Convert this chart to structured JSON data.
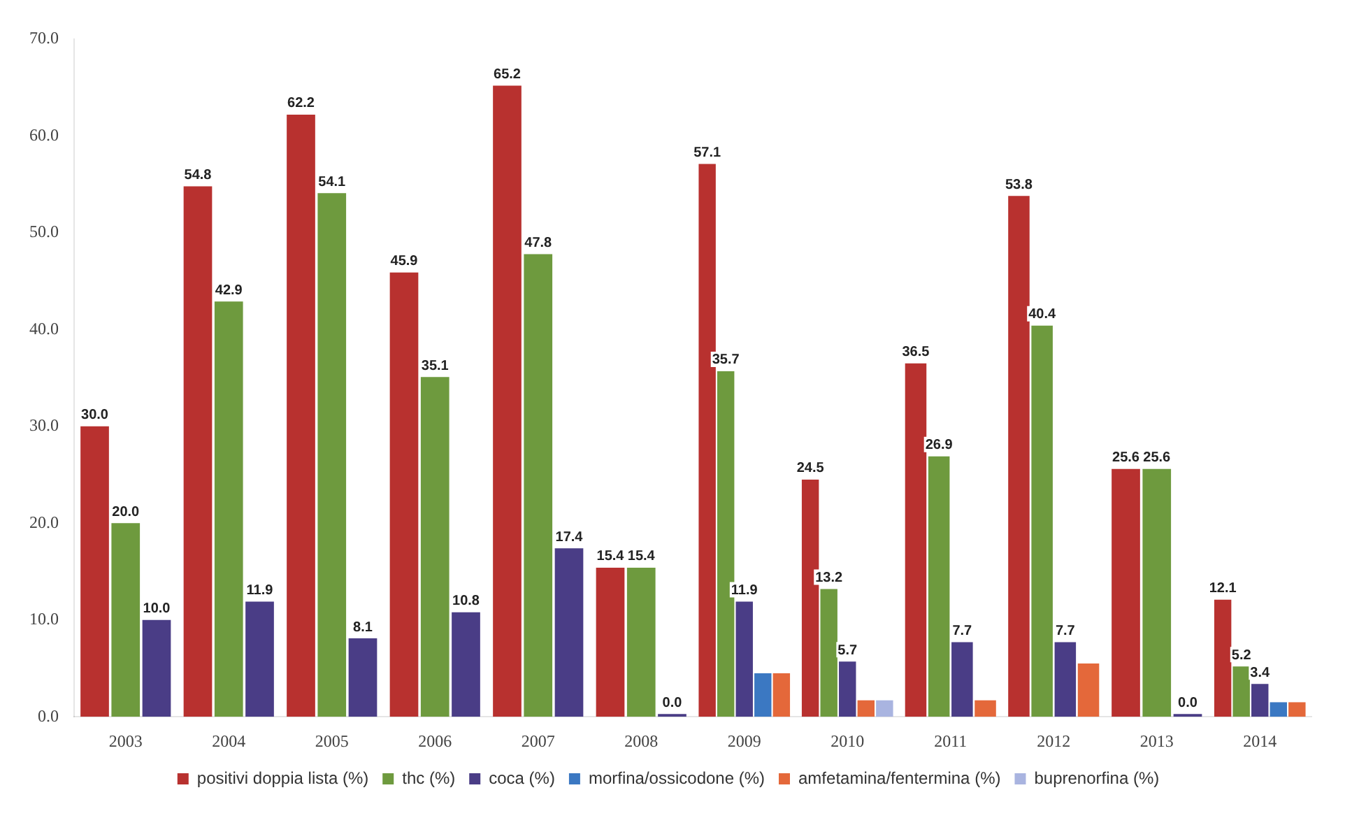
{
  "chart_data": {
    "type": "bar",
    "categories": [
      "2003",
      "2004",
      "2005",
      "2006",
      "2007",
      "2008",
      "2009",
      "2010",
      "2011",
      "2012",
      "2013",
      "2014"
    ],
    "series": [
      {
        "name": "positivi doppia lista (%)",
        "color": "#b8312f",
        "values": [
          30.0,
          54.8,
          62.2,
          45.9,
          65.2,
          15.4,
          57.1,
          24.5,
          36.5,
          53.8,
          25.6,
          12.1
        ],
        "value_labels": [
          "30.0",
          "54.8",
          "62.2",
          "45.9",
          "65.2",
          "15.4",
          "57.1",
          "24.5",
          "36.5",
          "53.8",
          "25.6",
          "12.1"
        ]
      },
      {
        "name": "thc (%)",
        "color": "#6e9a3e",
        "values": [
          20.0,
          42.9,
          54.1,
          35.1,
          47.8,
          15.4,
          35.7,
          13.2,
          26.9,
          40.4,
          25.6,
          5.2
        ],
        "value_labels": [
          "20.0",
          "42.9",
          "54.1",
          "35.1",
          "47.8",
          "15.4",
          "35.7",
          "13.2",
          "26.9",
          "40.4",
          "25.6",
          "5.2"
        ]
      },
      {
        "name": "coca (%)",
        "color": "#4a3d86",
        "values": [
          10.0,
          11.9,
          8.1,
          10.8,
          17.4,
          0.0,
          11.9,
          5.7,
          7.7,
          7.7,
          0.0,
          3.4
        ],
        "value_labels": [
          "10.0",
          "11.9",
          "8.1",
          "10.8",
          "17.4",
          "0.0",
          "11.9",
          "5.7",
          "7.7",
          "7.7",
          "0.0",
          "3.4"
        ]
      },
      {
        "name": "morfina/ossicodone (%)",
        "color": "#3b78c2",
        "values": [
          null,
          null,
          null,
          null,
          null,
          null,
          4.5,
          null,
          null,
          null,
          null,
          1.5
        ]
      },
      {
        "name": "amfetamina/fentermina (%)",
        "color": "#e4683a",
        "values": [
          null,
          null,
          null,
          null,
          null,
          null,
          4.5,
          1.7,
          1.7,
          5.5,
          null,
          1.5
        ]
      },
      {
        "name": "buprenorfina (%)",
        "color": "#a9b4e0",
        "values": [
          null,
          null,
          null,
          null,
          null,
          null,
          null,
          1.7,
          null,
          null,
          null,
          null
        ]
      }
    ],
    "ylim": [
      0,
      70
    ],
    "yticks": [
      {
        "value": 0,
        "label": "0.0"
      },
      {
        "value": 10,
        "label": "10.0"
      },
      {
        "value": 20,
        "label": "20.0"
      },
      {
        "value": 30,
        "label": "30.0"
      },
      {
        "value": 40,
        "label": "40.0"
      },
      {
        "value": 50,
        "label": "50.0"
      },
      {
        "value": 60,
        "label": "60.0"
      },
      {
        "value": 70,
        "label": "70.0"
      }
    ],
    "grid": false,
    "legend": "bottom"
  }
}
